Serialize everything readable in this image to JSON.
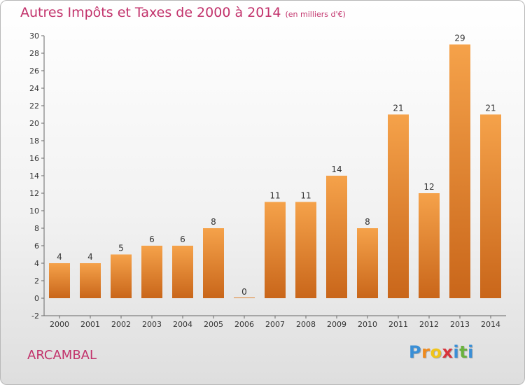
{
  "title": "Autres Impôts et Taxes de 2000 à 2014",
  "unit_label": "(en milliers d'€)",
  "commune": "ARCAMBAL",
  "logo": {
    "letters": [
      "P",
      "r",
      "o",
      "x",
      "i",
      "t",
      "i"
    ],
    "colors": [
      "#3a8fd6",
      "#f08a1c",
      "#f0c419",
      "#d8343c",
      "#3a8fd6",
      "#6ab23e",
      "#3a8fd6"
    ]
  },
  "chart_data": {
    "type": "bar",
    "categories": [
      "2000",
      "2001",
      "2002",
      "2003",
      "2004",
      "2005",
      "2006",
      "2007",
      "2008",
      "2009",
      "2010",
      "2011",
      "2012",
      "2013",
      "2014"
    ],
    "values": [
      4,
      4,
      5,
      6,
      6,
      8,
      0,
      11,
      11,
      14,
      8,
      21,
      12,
      29,
      21
    ],
    "ylim": [
      -2,
      30
    ],
    "yticks": [
      -2,
      0,
      2,
      4,
      6,
      8,
      10,
      12,
      14,
      16,
      18,
      20,
      22,
      24,
      26,
      28,
      30
    ],
    "grid": false,
    "bar_color_top": "#f5a24a",
    "bar_color_bottom": "#c9661a"
  }
}
